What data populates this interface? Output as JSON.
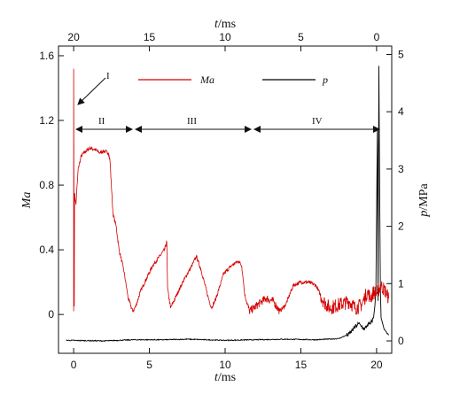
{
  "chart_data": {
    "type": "line",
    "x_bottom": {
      "label_var": "t",
      "label_unit": "/ms",
      "ticks": [
        0,
        5,
        10,
        15,
        20
      ],
      "range": [
        -1,
        21
      ]
    },
    "x_top": {
      "label_var": "t",
      "label_unit": "/ms",
      "ticks": [
        20,
        15,
        10,
        5,
        0
      ]
    },
    "y_left": {
      "label": "Ma",
      "ticks": [
        "0",
        "0.4",
        "0.8",
        "1.2",
        "1.6"
      ],
      "range": [
        -0.24,
        1.66
      ]
    },
    "y_right": {
      "label_var": "p",
      "label_unit": "/MPa",
      "ticks": [
        "0",
        "1",
        "2",
        "3",
        "4",
        "5"
      ]
    },
    "legend": [
      {
        "name": "Ma",
        "color": "#d40000"
      },
      {
        "name": "p",
        "color": "#000000"
      }
    ],
    "annotations": {
      "marker": "I",
      "regions": [
        {
          "label": "II",
          "from": 0,
          "to": 3.8
        },
        {
          "label": "III",
          "from": 3.8,
          "to": 11.5
        },
        {
          "label": "IV",
          "from": 11.5,
          "to": 20
        }
      ]
    },
    "series": [
      {
        "name": "Ma",
        "color": "#d40000",
        "axis": "left",
        "points": [
          [
            0.0,
            0.02
          ],
          [
            0.0,
            1.52
          ],
          [
            0.04,
            0.05
          ],
          [
            0.06,
            0.75
          ],
          [
            0.15,
            0.68
          ],
          [
            0.3,
            0.9
          ],
          [
            0.5,
            0.98
          ],
          [
            0.8,
            1.01
          ],
          [
            1.1,
            1.03
          ],
          [
            1.4,
            1.02
          ],
          [
            1.7,
            1.0
          ],
          [
            2.0,
            1.01
          ],
          [
            2.3,
            1.0
          ],
          [
            2.4,
            0.95
          ],
          [
            2.6,
            0.62
          ],
          [
            2.8,
            0.55
          ],
          [
            3.0,
            0.4
          ],
          [
            3.3,
            0.28
          ],
          [
            3.6,
            0.1
          ],
          [
            3.9,
            0.02
          ],
          [
            4.1,
            0.05
          ],
          [
            4.4,
            0.14
          ],
          [
            4.8,
            0.22
          ],
          [
            5.2,
            0.3
          ],
          [
            5.6,
            0.35
          ],
          [
            6.0,
            0.4
          ],
          [
            6.15,
            0.45
          ],
          [
            6.2,
            0.16
          ],
          [
            6.4,
            0.04
          ],
          [
            6.7,
            0.1
          ],
          [
            7.2,
            0.2
          ],
          [
            7.8,
            0.3
          ],
          [
            8.1,
            0.36
          ],
          [
            8.4,
            0.28
          ],
          [
            8.9,
            0.1
          ],
          [
            9.1,
            0.04
          ],
          [
            9.4,
            0.1
          ],
          [
            9.9,
            0.25
          ],
          [
            10.4,
            0.3
          ],
          [
            10.7,
            0.32
          ],
          [
            10.9,
            0.33
          ],
          [
            11.1,
            0.3
          ],
          [
            11.3,
            0.12
          ],
          [
            11.6,
            0.02
          ],
          [
            11.9,
            0.04
          ],
          [
            12.4,
            0.08
          ],
          [
            12.7,
            0.1
          ],
          [
            13.2,
            0.08
          ],
          [
            13.6,
            0.02
          ],
          [
            14.0,
            0.06
          ],
          [
            14.5,
            0.18
          ],
          [
            15.0,
            0.2
          ],
          [
            15.5,
            0.2
          ],
          [
            16.0,
            0.18
          ],
          [
            16.5,
            0.08
          ],
          [
            16.9,
            0.04
          ],
          [
            17.5,
            0.06
          ],
          [
            18.2,
            0.08
          ],
          [
            18.6,
            0.04
          ],
          [
            19.0,
            0.06
          ],
          [
            19.4,
            0.14
          ],
          [
            19.6,
            0.1
          ],
          [
            19.8,
            0.14
          ],
          [
            20.0,
            0.13
          ],
          [
            20.3,
            0.18
          ],
          [
            20.6,
            0.14
          ],
          [
            20.8,
            0.1
          ]
        ]
      },
      {
        "name": "p",
        "color": "#000000",
        "axis": "right",
        "points": [
          [
            -0.5,
            0.01
          ],
          [
            2.0,
            0.0
          ],
          [
            4.0,
            0.02
          ],
          [
            6.0,
            0.02
          ],
          [
            7.5,
            0.03
          ],
          [
            10.0,
            0.01
          ],
          [
            14.0,
            0.03
          ],
          [
            16.0,
            0.02
          ],
          [
            17.5,
            0.04
          ],
          [
            18.2,
            0.12
          ],
          [
            18.5,
            0.22
          ],
          [
            18.8,
            0.3
          ],
          [
            19.0,
            0.26
          ],
          [
            19.2,
            0.2
          ],
          [
            19.4,
            0.28
          ],
          [
            19.6,
            0.3
          ],
          [
            19.8,
            0.4
          ],
          [
            19.95,
            0.8
          ],
          [
            20.05,
            3.7
          ],
          [
            20.1,
            0.7
          ],
          [
            20.15,
            4.8
          ],
          [
            20.25,
            0.9
          ],
          [
            20.3,
            0.4
          ],
          [
            20.5,
            0.2
          ],
          [
            20.8,
            0.1
          ]
        ]
      }
    ]
  }
}
